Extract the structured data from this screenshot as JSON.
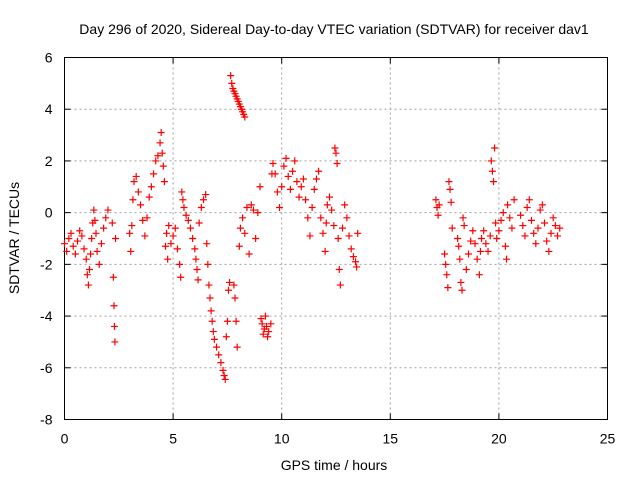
{
  "chart_data": {
    "type": "scatter",
    "title": "Day 296 of 2020, Sidereal Day-to-day VTEC variation (SDTVAR) for receiver dav1",
    "xlabel": "GPS time / hours",
    "ylabel": "SDTVAR / TECUs",
    "xlim": [
      0,
      25
    ],
    "ylim": [
      -8,
      6
    ],
    "xticks": [
      "0",
      "5",
      "10",
      "15",
      "20",
      "25"
    ],
    "yticks": [
      "-8",
      "-6",
      "-4",
      "-2",
      "0",
      "2",
      "4",
      "6"
    ],
    "grid": true,
    "marker": "+",
    "color": "#ff0000",
    "series": [
      {
        "name": "SDTVAR",
        "points": [
          [
            0.0,
            -1.2
          ],
          [
            0.1,
            -1.5
          ],
          [
            0.2,
            -1.0
          ],
          [
            0.3,
            -0.8
          ],
          [
            0.4,
            -1.3
          ],
          [
            0.5,
            -1.6
          ],
          [
            0.6,
            -1.1
          ],
          [
            0.7,
            -0.7
          ],
          [
            0.8,
            -0.9
          ],
          [
            0.9,
            -1.4
          ],
          [
            1.0,
            -1.8
          ],
          [
            1.05,
            -2.4
          ],
          [
            1.1,
            -2.8
          ],
          [
            1.15,
            -2.2
          ],
          [
            1.2,
            -1.6
          ],
          [
            1.25,
            -1.0
          ],
          [
            1.3,
            -0.4
          ],
          [
            1.35,
            0.1
          ],
          [
            1.4,
            -0.3
          ],
          [
            1.45,
            -0.8
          ],
          [
            1.5,
            -1.5
          ],
          [
            1.6,
            -2.0
          ],
          [
            1.7,
            -1.2
          ],
          [
            1.8,
            -0.6
          ],
          [
            1.9,
            -0.2
          ],
          [
            2.0,
            0.1
          ],
          [
            2.2,
            -0.4
          ],
          [
            2.25,
            -2.5
          ],
          [
            2.28,
            -3.6
          ],
          [
            2.3,
            -4.4
          ],
          [
            2.32,
            -5.0
          ],
          [
            2.35,
            -1.0
          ],
          [
            3.0,
            -0.8
          ],
          [
            3.05,
            -1.5
          ],
          [
            3.1,
            -0.5
          ],
          [
            3.15,
            0.5
          ],
          [
            3.2,
            1.2
          ],
          [
            3.3,
            1.4
          ],
          [
            3.4,
            0.8
          ],
          [
            3.5,
            0.3
          ],
          [
            3.6,
            -0.3
          ],
          [
            3.7,
            -0.9
          ],
          [
            3.8,
            -0.2
          ],
          [
            3.9,
            0.6
          ],
          [
            4.0,
            1.0
          ],
          [
            4.1,
            1.5
          ],
          [
            4.2,
            2.0
          ],
          [
            4.3,
            2.2
          ],
          [
            4.4,
            2.7
          ],
          [
            4.45,
            3.1
          ],
          [
            4.5,
            2.3
          ],
          [
            4.55,
            1.8
          ],
          [
            4.6,
            1.2
          ],
          [
            4.65,
            -1.3
          ],
          [
            4.7,
            -0.8
          ],
          [
            4.75,
            -1.8
          ],
          [
            4.8,
            -0.5
          ],
          [
            4.9,
            -1.2
          ],
          [
            5.0,
            -0.9
          ],
          [
            5.1,
            -0.6
          ],
          [
            5.2,
            -1.4
          ],
          [
            5.3,
            -2.0
          ],
          [
            5.35,
            -2.5
          ],
          [
            5.4,
            0.8
          ],
          [
            5.45,
            0.5
          ],
          [
            5.5,
            0.2
          ],
          [
            5.6,
            -0.1
          ],
          [
            5.7,
            -0.3
          ],
          [
            5.8,
            -0.6
          ],
          [
            5.9,
            -1.0
          ],
          [
            6.0,
            -1.4
          ],
          [
            6.05,
            -1.8
          ],
          [
            6.1,
            -2.2
          ],
          [
            6.15,
            -2.6
          ],
          [
            6.2,
            -0.4
          ],
          [
            6.3,
            0.2
          ],
          [
            6.4,
            0.5
          ],
          [
            6.5,
            0.7
          ],
          [
            6.55,
            -1.2
          ],
          [
            6.6,
            -2.0
          ],
          [
            6.65,
            -2.8
          ],
          [
            6.7,
            -3.3
          ],
          [
            6.75,
            -3.8
          ],
          [
            6.8,
            -4.2
          ],
          [
            6.85,
            -4.6
          ],
          [
            6.9,
            -4.9
          ],
          [
            7.0,
            -5.2
          ],
          [
            7.1,
            -5.5
          ],
          [
            7.2,
            -5.8
          ],
          [
            7.3,
            -6.1
          ],
          [
            7.35,
            -6.3
          ],
          [
            7.4,
            -6.45
          ],
          [
            7.45,
            -4.8
          ],
          [
            7.5,
            -4.2
          ],
          [
            7.55,
            -3.0
          ],
          [
            7.6,
            -2.7
          ],
          [
            7.65,
            5.3
          ],
          [
            7.7,
            5.0
          ],
          [
            7.75,
            4.8
          ],
          [
            7.8,
            4.7
          ],
          [
            7.85,
            4.6
          ],
          [
            7.9,
            4.5
          ],
          [
            7.95,
            4.4
          ],
          [
            8.0,
            4.3
          ],
          [
            8.05,
            4.2
          ],
          [
            8.1,
            4.1
          ],
          [
            8.15,
            4.0
          ],
          [
            8.2,
            3.9
          ],
          [
            8.25,
            3.8
          ],
          [
            8.3,
            3.7
          ],
          [
            7.8,
            -2.8
          ],
          [
            7.85,
            -3.3
          ],
          [
            7.9,
            -4.2
          ],
          [
            7.95,
            -5.2
          ],
          [
            8.05,
            -1.3
          ],
          [
            8.1,
            -0.6
          ],
          [
            8.2,
            -0.2
          ],
          [
            8.3,
            -0.8
          ],
          [
            8.4,
            0.2
          ],
          [
            8.5,
            -1.6
          ],
          [
            8.6,
            0.3
          ],
          [
            8.7,
            0.1
          ],
          [
            8.8,
            -1.0
          ],
          [
            8.9,
            0.0
          ],
          [
            9.0,
            1.0
          ],
          [
            9.05,
            -4.1
          ],
          [
            9.1,
            -4.3
          ],
          [
            9.15,
            -4.7
          ],
          [
            9.2,
            -4.5
          ],
          [
            9.25,
            -4.0
          ],
          [
            9.3,
            -4.4
          ],
          [
            9.35,
            -4.8
          ],
          [
            9.4,
            -4.6
          ],
          [
            9.5,
            -4.3
          ],
          [
            9.55,
            1.5
          ],
          [
            9.6,
            1.9
          ],
          [
            9.7,
            1.5
          ],
          [
            9.8,
            0.8
          ],
          [
            9.9,
            0.2
          ],
          [
            10.0,
            1.0
          ],
          [
            10.1,
            1.8
          ],
          [
            10.2,
            2.1
          ],
          [
            10.3,
            1.4
          ],
          [
            10.4,
            0.9
          ],
          [
            10.5,
            1.6
          ],
          [
            10.6,
            2.0
          ],
          [
            10.7,
            1.2
          ],
          [
            10.8,
            0.6
          ],
          [
            10.9,
            1.0
          ],
          [
            11.0,
            1.3
          ],
          [
            11.1,
            0.5
          ],
          [
            11.2,
            -0.2
          ],
          [
            11.3,
            -0.9
          ],
          [
            11.4,
            0.2
          ],
          [
            11.5,
            0.9
          ],
          [
            11.6,
            1.3
          ],
          [
            11.7,
            1.6
          ],
          [
            11.8,
            -0.2
          ],
          [
            11.9,
            -0.8
          ],
          [
            12.0,
            -1.5
          ],
          [
            12.05,
            -0.4
          ],
          [
            12.1,
            0.3
          ],
          [
            12.2,
            0.6
          ],
          [
            12.3,
            0.1
          ],
          [
            12.4,
            -0.5
          ],
          [
            12.45,
            2.5
          ],
          [
            12.5,
            2.3
          ],
          [
            12.55,
            1.9
          ],
          [
            12.6,
            -1.0
          ],
          [
            12.65,
            -2.2
          ],
          [
            12.7,
            -2.8
          ],
          [
            12.8,
            -0.6
          ],
          [
            12.9,
            0.3
          ],
          [
            13.0,
            -0.2
          ],
          [
            13.1,
            -0.9
          ],
          [
            13.2,
            -1.4
          ],
          [
            13.3,
            -1.7
          ],
          [
            13.4,
            -1.9
          ],
          [
            13.45,
            -2.1
          ],
          [
            13.5,
            -0.8
          ],
          [
            17.1,
            0.5
          ],
          [
            17.15,
            0.2
          ],
          [
            17.2,
            -0.1
          ],
          [
            17.25,
            0.3
          ],
          [
            17.5,
            -1.6
          ],
          [
            17.55,
            -2.0
          ],
          [
            17.6,
            -2.4
          ],
          [
            17.65,
            -2.9
          ],
          [
            17.7,
            1.2
          ],
          [
            17.75,
            0.9
          ],
          [
            17.8,
            0.4
          ],
          [
            17.85,
            -0.6
          ],
          [
            18.1,
            -1.0
          ],
          [
            18.15,
            -1.3
          ],
          [
            18.2,
            -1.8
          ],
          [
            18.25,
            -2.7
          ],
          [
            18.3,
            -3.0
          ],
          [
            18.35,
            -0.2
          ],
          [
            18.4,
            -0.5
          ],
          [
            18.5,
            -2.2
          ],
          [
            18.6,
            -1.6
          ],
          [
            18.7,
            -1.1
          ],
          [
            18.8,
            -0.7
          ],
          [
            18.9,
            -1.2
          ],
          [
            19.0,
            -1.8
          ],
          [
            19.1,
            -2.4
          ],
          [
            19.15,
            -1.5
          ],
          [
            19.2,
            -1.0
          ],
          [
            19.3,
            -0.7
          ],
          [
            19.4,
            -1.2
          ],
          [
            19.5,
            -1.5
          ],
          [
            19.6,
            -0.9
          ],
          [
            19.65,
            2.0
          ],
          [
            19.7,
            1.6
          ],
          [
            19.75,
            1.2
          ],
          [
            19.8,
            2.5
          ],
          [
            19.85,
            -0.4
          ],
          [
            19.9,
            -1.0
          ],
          [
            20.0,
            -0.7
          ],
          [
            20.1,
            -0.3
          ],
          [
            20.2,
            0.0
          ],
          [
            20.3,
            -1.3
          ],
          [
            20.35,
            -1.8
          ],
          [
            20.4,
            0.3
          ],
          [
            20.5,
            -0.2
          ],
          [
            20.6,
            -0.6
          ],
          [
            20.7,
            0.5
          ],
          [
            21.0,
            -0.1
          ],
          [
            21.1,
            -0.5
          ],
          [
            21.2,
            -0.9
          ],
          [
            21.3,
            0.2
          ],
          [
            21.4,
            0.5
          ],
          [
            21.5,
            -0.3
          ],
          [
            21.6,
            -0.8
          ],
          [
            21.7,
            -1.2
          ],
          [
            21.8,
            -0.6
          ],
          [
            21.9,
            0.1
          ],
          [
            22.0,
            0.3
          ],
          [
            22.1,
            -0.4
          ],
          [
            22.2,
            -1.1
          ],
          [
            22.3,
            -1.5
          ],
          [
            22.4,
            -0.8
          ],
          [
            22.5,
            -0.2
          ],
          [
            22.6,
            -0.5
          ],
          [
            22.7,
            -0.9
          ],
          [
            22.8,
            -0.6
          ]
        ]
      }
    ]
  }
}
